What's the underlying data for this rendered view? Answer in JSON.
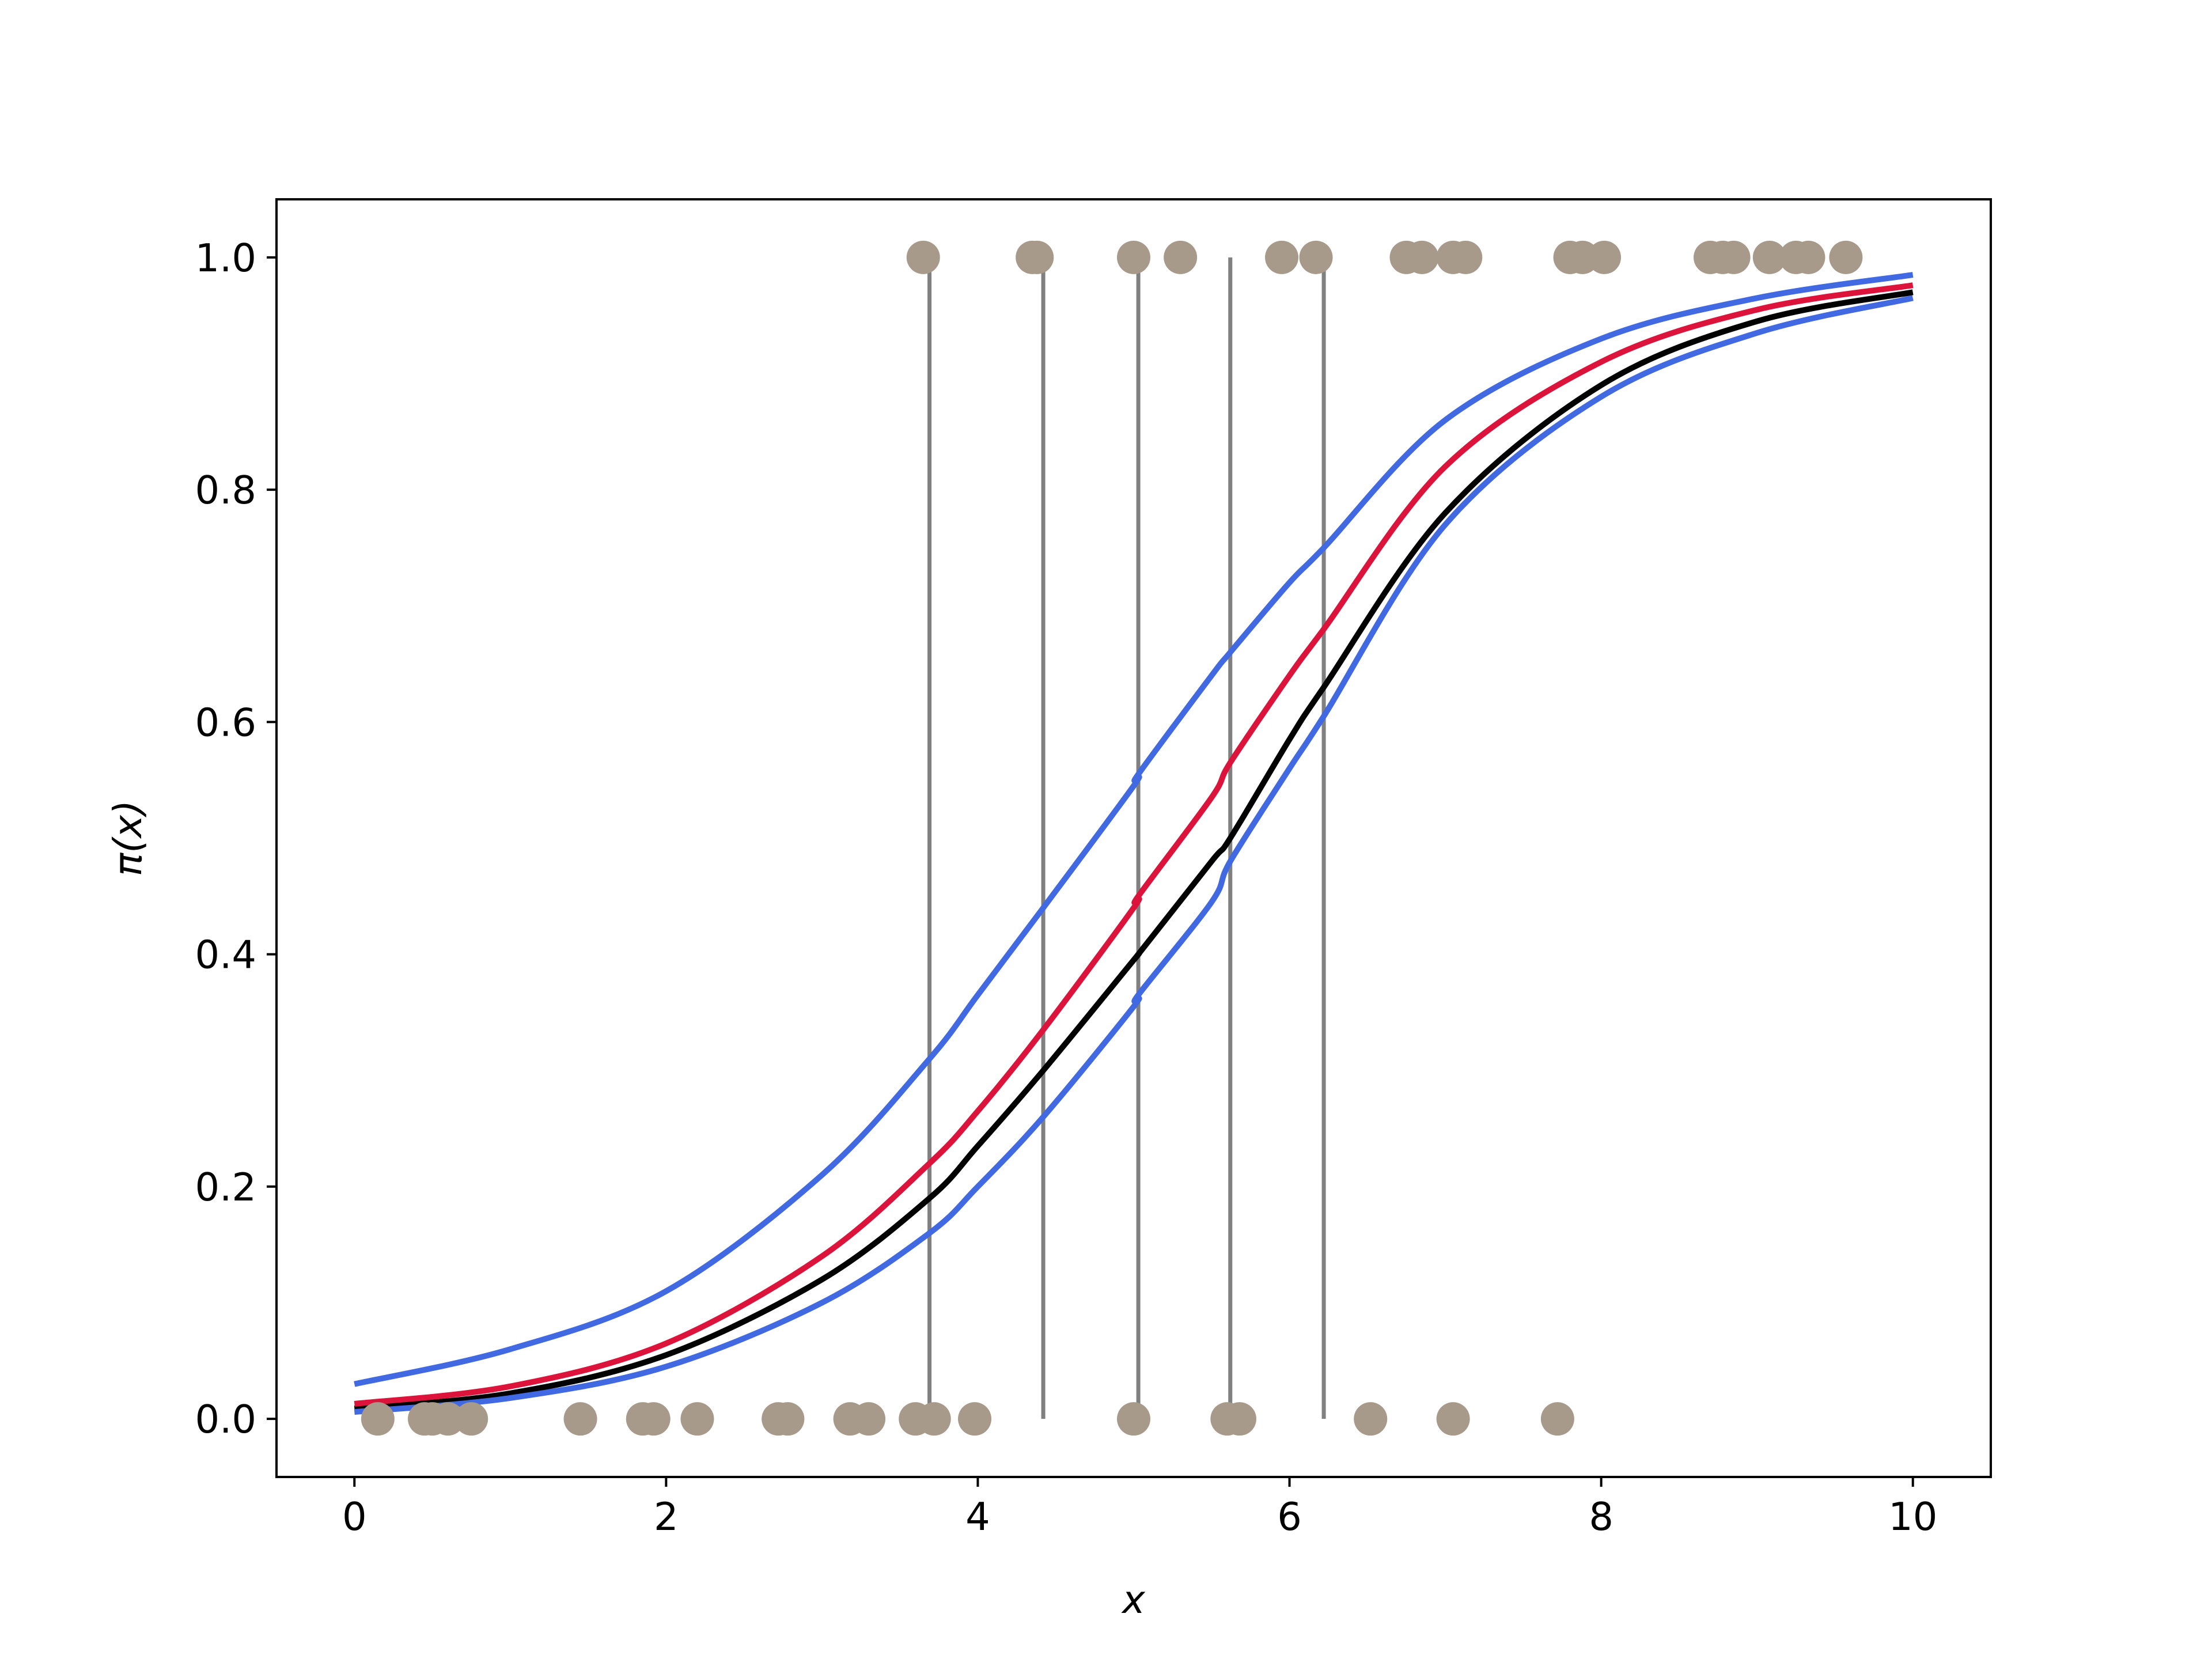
{
  "chart_data": {
    "type": "line",
    "title": "",
    "xlabel": "x",
    "ylabel": "π(x)",
    "xlim": [
      -0.5,
      10.5
    ],
    "ylim": [
      -0.05,
      1.05
    ],
    "x_ticks": [
      0,
      2,
      4,
      6,
      8,
      10
    ],
    "x_tick_labels": [
      "0",
      "2",
      "4",
      "6",
      "8",
      "10"
    ],
    "y_ticks": [
      0.0,
      0.2,
      0.4,
      0.6,
      0.8,
      1.0
    ],
    "y_tick_labels": [
      "0.0",
      "0.2",
      "0.4",
      "0.6",
      "0.8",
      "1.0"
    ],
    "grid": false,
    "legend": "none",
    "series": [
      {
        "style": "curve",
        "color": "#000000",
        "x": [
          0,
          1,
          2,
          3,
          3.69,
          4,
          4.42,
          5,
          5.03,
          5.5,
          5.62,
          6,
          6.22,
          7,
          8,
          9,
          10
        ],
        "y": [
          0.009,
          0.022,
          0.055,
          0.12,
          0.19,
          0.235,
          0.3,
          0.395,
          0.4,
          0.48,
          0.5,
          0.585,
          0.63,
          0.78,
          0.89,
          0.945,
          0.97
        ]
      },
      {
        "style": "curve",
        "color": "#dc143c",
        "x": [
          0,
          1,
          2,
          3,
          3.69,
          4,
          4.42,
          5,
          5.03,
          5.5,
          5.62,
          6,
          6.22,
          7,
          8,
          9,
          10
        ],
        "y": [
          0.013,
          0.028,
          0.065,
          0.14,
          0.22,
          0.265,
          0.335,
          0.44,
          0.45,
          0.535,
          0.565,
          0.64,
          0.68,
          0.82,
          0.91,
          0.955,
          0.976
        ]
      },
      {
        "style": "curve",
        "color": "#4169e1",
        "x": [
          0,
          1,
          2,
          3,
          3.69,
          4,
          4.42,
          5,
          5.03,
          5.5,
          5.62,
          6,
          6.22,
          7,
          8,
          9,
          10
        ],
        "y": [
          0.03,
          0.06,
          0.11,
          0.21,
          0.31,
          0.365,
          0.44,
          0.545,
          0.555,
          0.64,
          0.66,
          0.72,
          0.75,
          0.86,
          0.93,
          0.965,
          0.985
        ]
      },
      {
        "style": "curve",
        "color": "#4169e1",
        "x": [
          0,
          1,
          2,
          3,
          3.69,
          4,
          4.42,
          5,
          5.03,
          5.5,
          5.62,
          6,
          6.22,
          7,
          8,
          9,
          10
        ],
        "y": [
          0.006,
          0.018,
          0.045,
          0.1,
          0.16,
          0.2,
          0.26,
          0.355,
          0.365,
          0.445,
          0.48,
          0.56,
          0.605,
          0.77,
          0.88,
          0.935,
          0.965
        ]
      },
      {
        "style": "vlines",
        "color": "#808080",
        "x": [
          3.69,
          4.42,
          5.03,
          5.62,
          6.22
        ],
        "ymin": 0.0,
        "ymax": 1.0
      },
      {
        "style": "scatter",
        "color": "#a89a8a",
        "points": [
          [
            0.15,
            0
          ],
          [
            0.45,
            0
          ],
          [
            0.5,
            0
          ],
          [
            0.6,
            0
          ],
          [
            0.75,
            0
          ],
          [
            1.45,
            0
          ],
          [
            1.85,
            0
          ],
          [
            1.92,
            0
          ],
          [
            2.2,
            0
          ],
          [
            2.72,
            0
          ],
          [
            2.78,
            0
          ],
          [
            3.18,
            0
          ],
          [
            3.3,
            0
          ],
          [
            3.6,
            0
          ],
          [
            3.72,
            0
          ],
          [
            3.98,
            0
          ],
          [
            5.0,
            0
          ],
          [
            5.6,
            0
          ],
          [
            5.68,
            0
          ],
          [
            6.52,
            0
          ],
          [
            7.05,
            0
          ],
          [
            7.72,
            0
          ],
          [
            3.65,
            1
          ],
          [
            4.35,
            1
          ],
          [
            4.38,
            1
          ],
          [
            5.0,
            1
          ],
          [
            5.3,
            1
          ],
          [
            5.95,
            1
          ],
          [
            6.17,
            1
          ],
          [
            6.75,
            1
          ],
          [
            6.85,
            1
          ],
          [
            7.05,
            1
          ],
          [
            7.13,
            1
          ],
          [
            7.8,
            1
          ],
          [
            7.88,
            1
          ],
          [
            8.02,
            1
          ],
          [
            8.7,
            1
          ],
          [
            8.78,
            1
          ],
          [
            8.85,
            1
          ],
          [
            9.08,
            1
          ],
          [
            9.25,
            1
          ],
          [
            9.33,
            1
          ],
          [
            9.57,
            1
          ]
        ]
      }
    ]
  }
}
